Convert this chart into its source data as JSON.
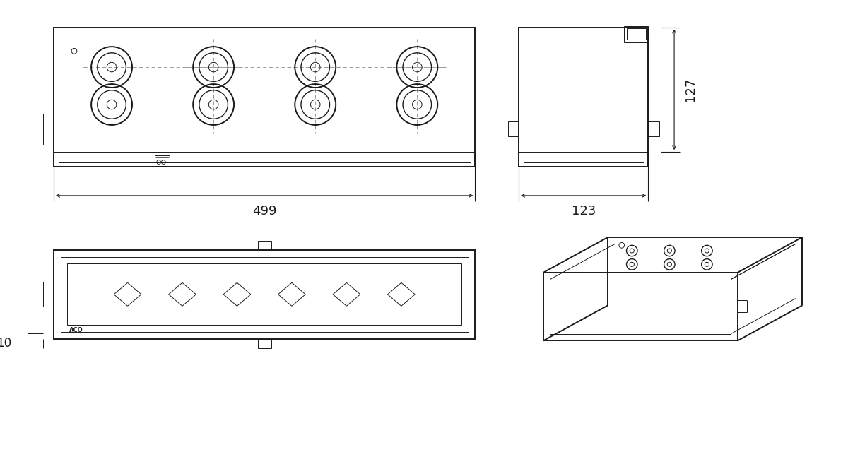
{
  "bg_color": "#ffffff",
  "line_color": "#1a1a1a",
  "dim_color": "#1a1a1a",
  "dash_color": "#999999",
  "fig_width": 12.0,
  "fig_height": 6.57,
  "labels": {
    "499": "499",
    "123": "123",
    "127": "127",
    "10": "10"
  }
}
